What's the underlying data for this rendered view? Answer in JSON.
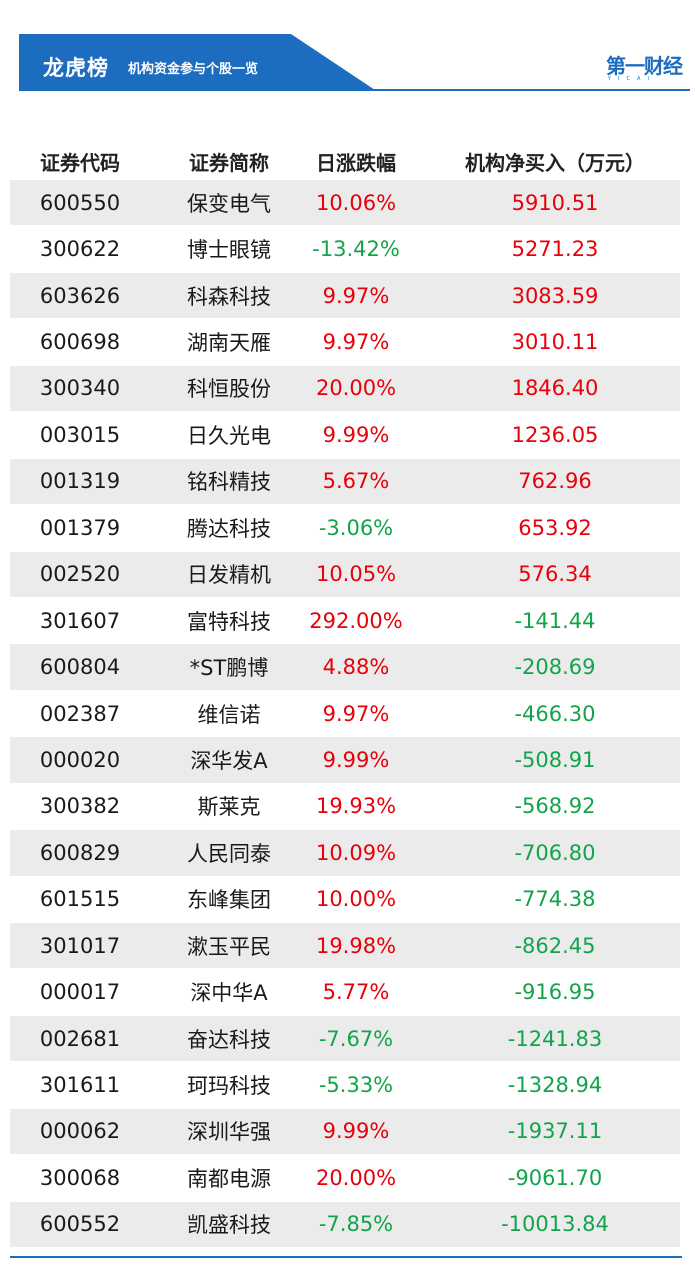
{
  "header": {
    "title": "龙虎榜",
    "subtitle": "机构资金参与个股一览",
    "logo_text": "第一财经",
    "logo_sub": "YICAI"
  },
  "colors": {
    "accent": "#1c6cc0",
    "positive": "#e8000b",
    "negative": "#13a34a",
    "row_shade": "#ebebeb"
  },
  "table": {
    "columns": [
      "证券代码",
      "证券简称",
      "日涨跌幅",
      "机构净买入（万元）"
    ],
    "rows": [
      {
        "code": "600550",
        "name": "保变电气",
        "change": "10.06%",
        "net_buy": "5910.51"
      },
      {
        "code": "300622",
        "name": "博士眼镜",
        "change": "-13.42%",
        "net_buy": "5271.23"
      },
      {
        "code": "603626",
        "name": "科森科技",
        "change": "9.97%",
        "net_buy": "3083.59"
      },
      {
        "code": "600698",
        "name": "湖南天雁",
        "change": "9.97%",
        "net_buy": "3010.11"
      },
      {
        "code": "300340",
        "name": "科恒股份",
        "change": "20.00%",
        "net_buy": "1846.40"
      },
      {
        "code": "003015",
        "name": "日久光电",
        "change": "9.99%",
        "net_buy": "1236.05"
      },
      {
        "code": "001319",
        "name": "铭科精技",
        "change": "5.67%",
        "net_buy": "762.96"
      },
      {
        "code": "001379",
        "name": "腾达科技",
        "change": "-3.06%",
        "net_buy": "653.92"
      },
      {
        "code": "002520",
        "name": "日发精机",
        "change": "10.05%",
        "net_buy": "576.34"
      },
      {
        "code": "301607",
        "name": "富特科技",
        "change": "292.00%",
        "net_buy": "-141.44"
      },
      {
        "code": "600804",
        "name": "*ST鹏博",
        "change": "4.88%",
        "net_buy": "-208.69"
      },
      {
        "code": "002387",
        "name": "维信诺",
        "change": "9.97%",
        "net_buy": "-466.30"
      },
      {
        "code": "000020",
        "name": "深华发A",
        "change": "9.99%",
        "net_buy": "-508.91"
      },
      {
        "code": "300382",
        "name": "斯莱克",
        "change": "19.93%",
        "net_buy": "-568.92"
      },
      {
        "code": "600829",
        "name": "人民同泰",
        "change": "10.09%",
        "net_buy": "-706.80"
      },
      {
        "code": "601515",
        "name": "东峰集团",
        "change": "10.00%",
        "net_buy": "-774.38"
      },
      {
        "code": "301017",
        "name": "漱玉平民",
        "change": "19.98%",
        "net_buy": "-862.45"
      },
      {
        "code": "000017",
        "name": "深中华A",
        "change": "5.77%",
        "net_buy": "-916.95"
      },
      {
        "code": "002681",
        "name": "奋达科技",
        "change": "-7.67%",
        "net_buy": "-1241.83"
      },
      {
        "code": "301611",
        "name": "珂玛科技",
        "change": "-5.33%",
        "net_buy": "-1328.94"
      },
      {
        "code": "000062",
        "name": "深圳华强",
        "change": "9.99%",
        "net_buy": "-1937.11"
      },
      {
        "code": "300068",
        "name": "南都电源",
        "change": "20.00%",
        "net_buy": "-9061.70"
      },
      {
        "code": "600552",
        "name": "凯盛科技",
        "change": "-7.85%",
        "net_buy": "-10013.84"
      }
    ]
  }
}
